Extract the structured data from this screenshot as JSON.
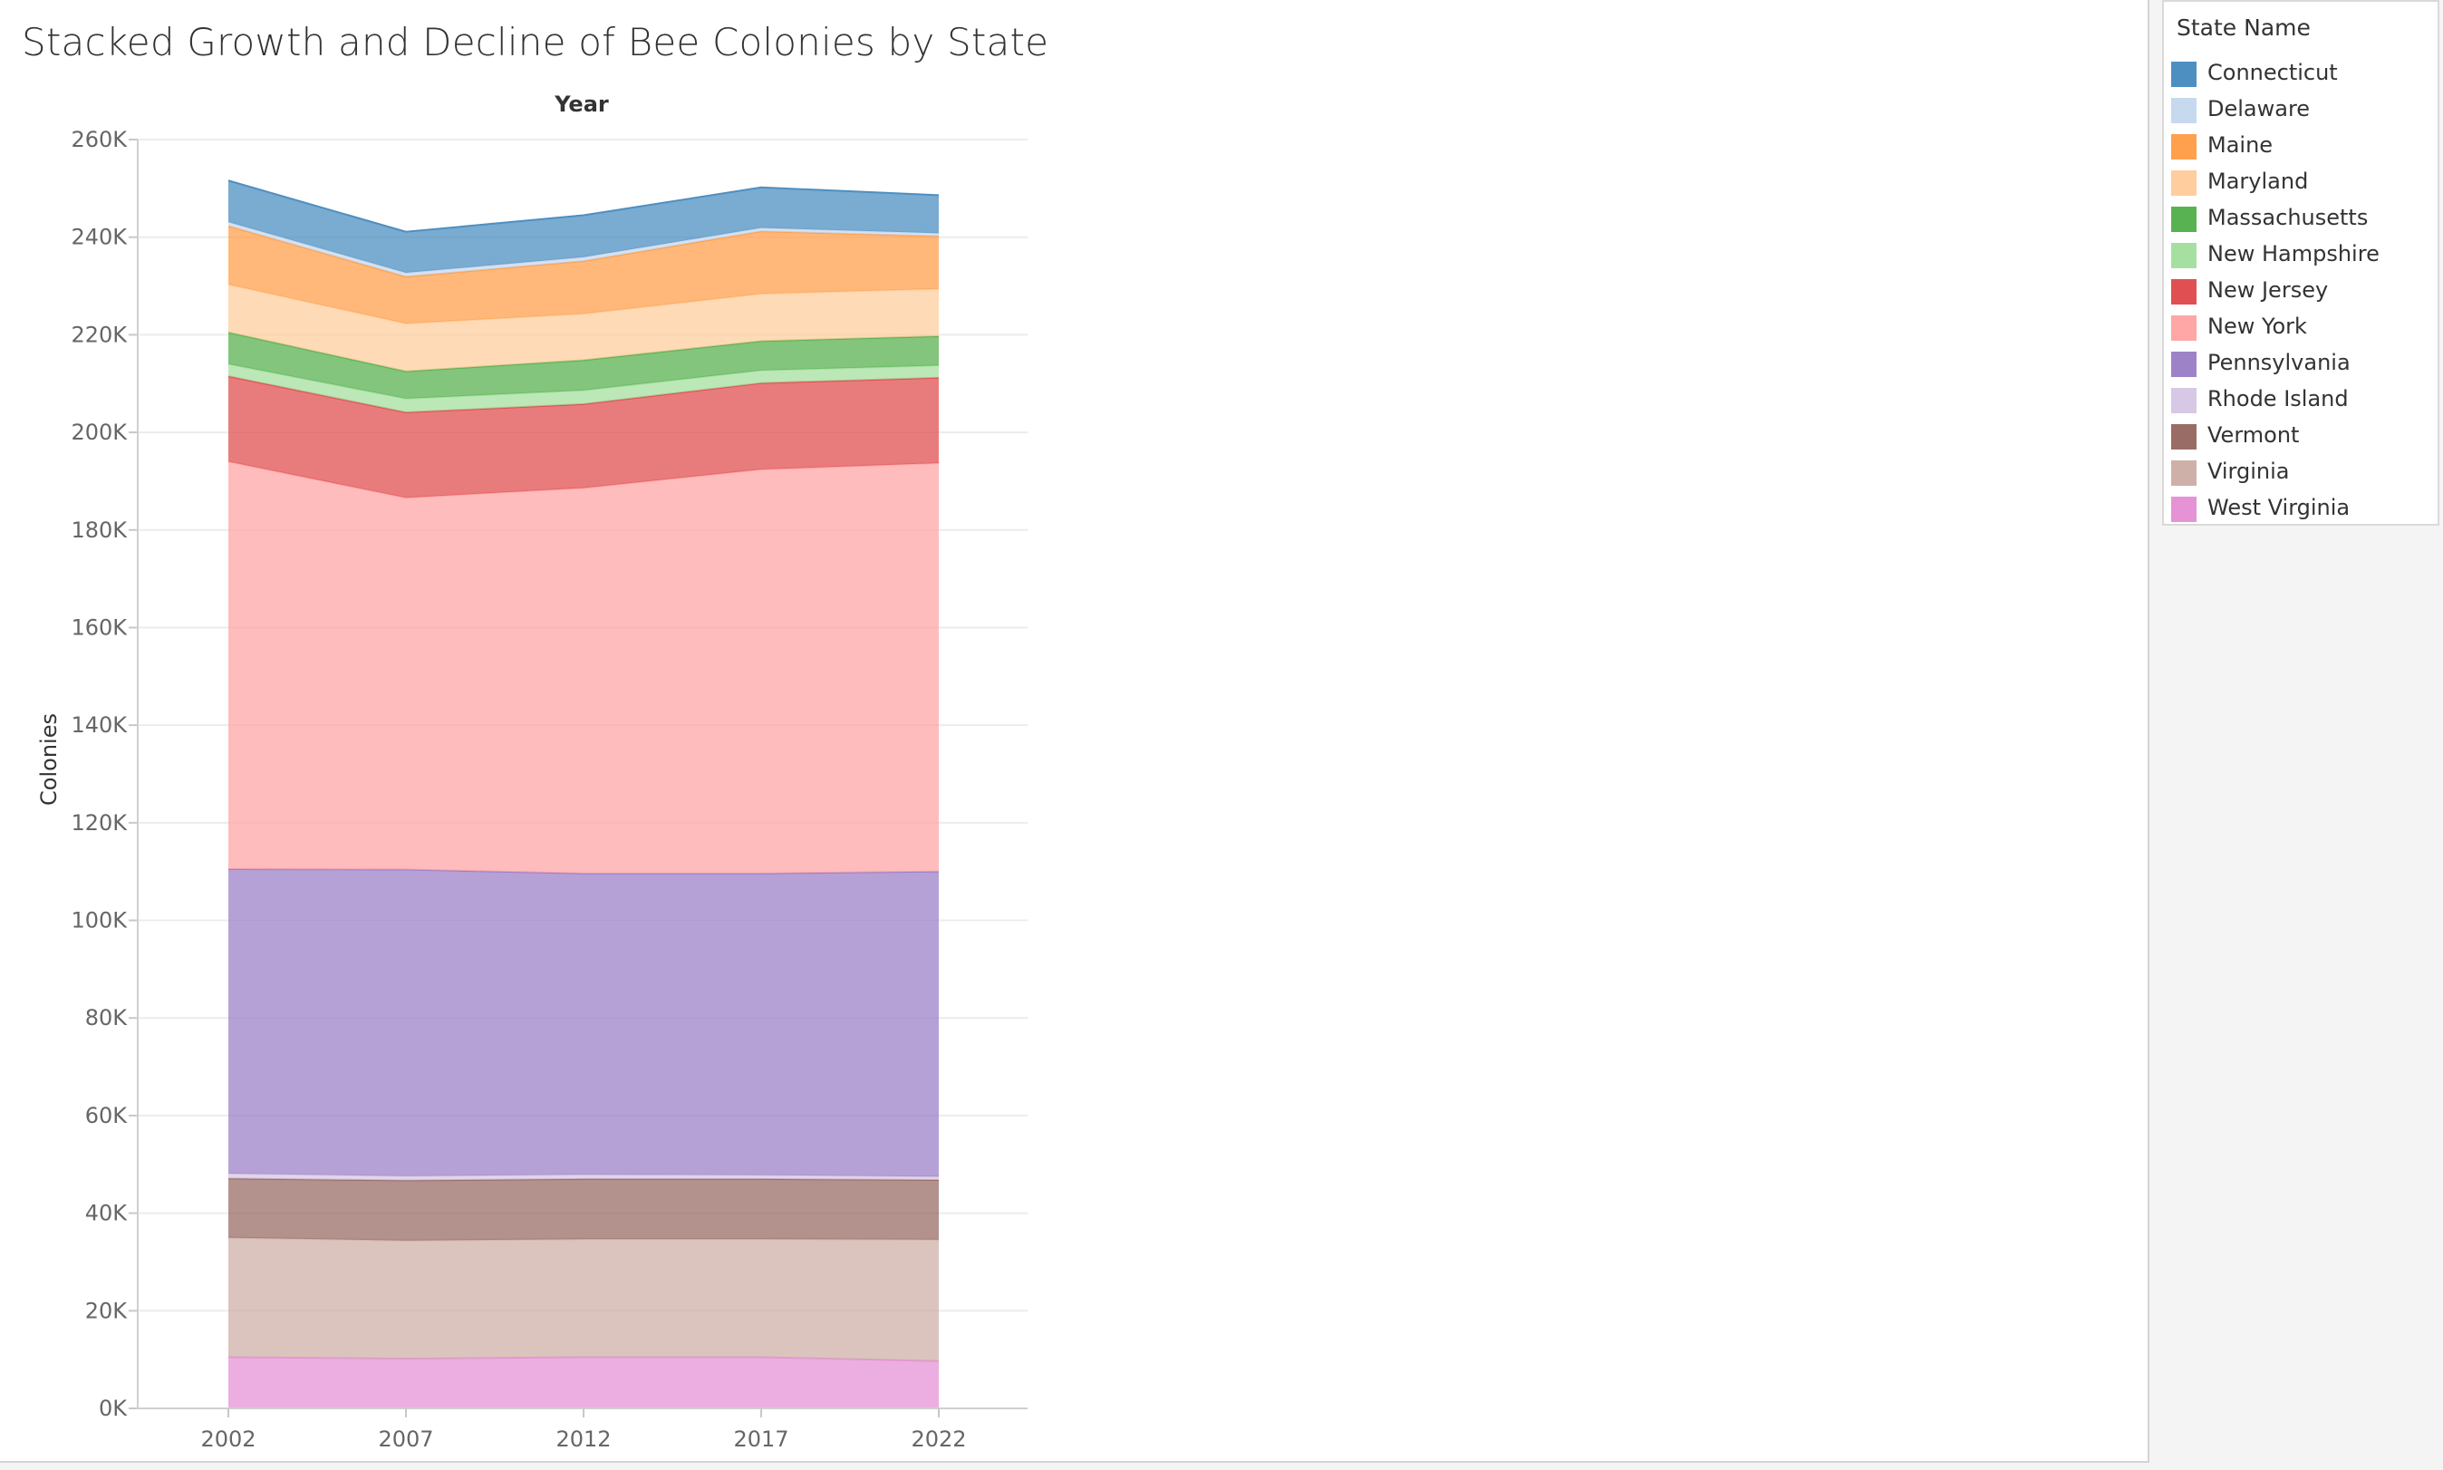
{
  "chart_data": {
    "type": "area",
    "stacked": true,
    "title": "Stacked Growth and Decline of Bee Colonies by State",
    "xlabel": "Year",
    "xlabel_position": "top",
    "ylabel": "Colonies",
    "x": [
      2002,
      2007,
      2012,
      2017,
      2022
    ],
    "x_tick_labels": [
      "2002",
      "2007",
      "2012",
      "2017",
      "2022"
    ],
    "ylim": [
      0,
      260000
    ],
    "y_ticks": [
      0,
      20000,
      40000,
      60000,
      80000,
      100000,
      120000,
      140000,
      160000,
      180000,
      200000,
      220000,
      240000,
      260000
    ],
    "y_tick_labels": [
      "0K",
      "20K",
      "40K",
      "60K",
      "80K",
      "100K",
      "120K",
      "140K",
      "160K",
      "180K",
      "200K",
      "220K",
      "240K",
      "260K"
    ],
    "grid": true,
    "legend_title": "State Name",
    "legend_position": "right",
    "series": [
      {
        "name": "Connecticut",
        "color": "#4e8fc1",
        "values": [
          8500,
          8400,
          8600,
          8300,
          7800
        ]
      },
      {
        "name": "Delaware",
        "color": "#c7d9ef",
        "values": [
          800,
          800,
          800,
          700,
          600
        ]
      },
      {
        "name": "Maine",
        "color": "#ffa04d",
        "values": [
          12000,
          9600,
          10800,
          12800,
          10800
        ]
      },
      {
        "name": "Maryland",
        "color": "#ffcd9e",
        "values": [
          9800,
          9800,
          9500,
          9700,
          9700
        ]
      },
      {
        "name": "Massachusetts",
        "color": "#59b251",
        "values": [
          6500,
          5600,
          6200,
          6000,
          6000
        ]
      },
      {
        "name": "New Hampshire",
        "color": "#a6e0a0",
        "values": [
          2500,
          2800,
          2800,
          2600,
          2500
        ]
      },
      {
        "name": "New Jersey",
        "color": "#e05052",
        "values": [
          17500,
          17500,
          17200,
          17700,
          17500
        ]
      },
      {
        "name": "New York",
        "color": "#ffa6a6",
        "values": [
          83500,
          76200,
          79000,
          82800,
          83700
        ]
      },
      {
        "name": "Pennsylvania",
        "color": "#9e82c8",
        "values": [
          62400,
          62800,
          61700,
          61800,
          62500
        ]
      },
      {
        "name": "Rhode Island",
        "color": "#d7c8e6",
        "values": [
          1000,
          900,
          900,
          800,
          700
        ]
      },
      {
        "name": "Vermont",
        "color": "#9a6c66",
        "values": [
          12100,
          12300,
          12300,
          12300,
          12200
        ]
      },
      {
        "name": "Virginia",
        "color": "#cfb0a8",
        "values": [
          24500,
          24200,
          24200,
          24200,
          24900
        ]
      },
      {
        "name": "West Virginia",
        "color": "#e693d6",
        "values": [
          10500,
          10200,
          10500,
          10500,
          9700
        ]
      }
    ]
  }
}
